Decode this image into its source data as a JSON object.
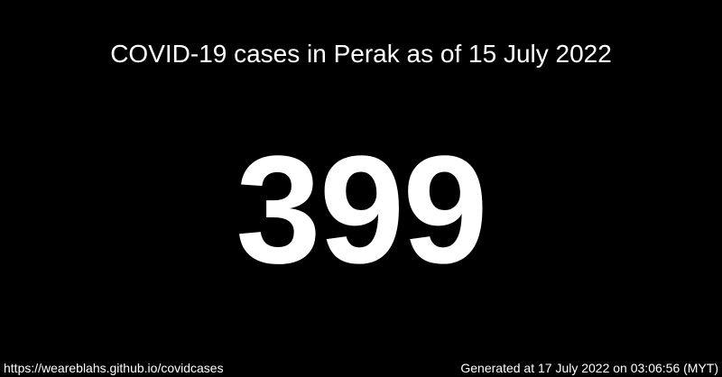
{
  "headline": "COVID-19 cases in Perak as of 15 July 2022",
  "case_count": "399",
  "footer": {
    "source_url": "https://weareblahs.github.io/covidcases",
    "generated_text": "Generated at 17 July 2022 on 03:06:56 (MYT)"
  },
  "colors": {
    "background": "#000000",
    "text": "#ffffff"
  }
}
